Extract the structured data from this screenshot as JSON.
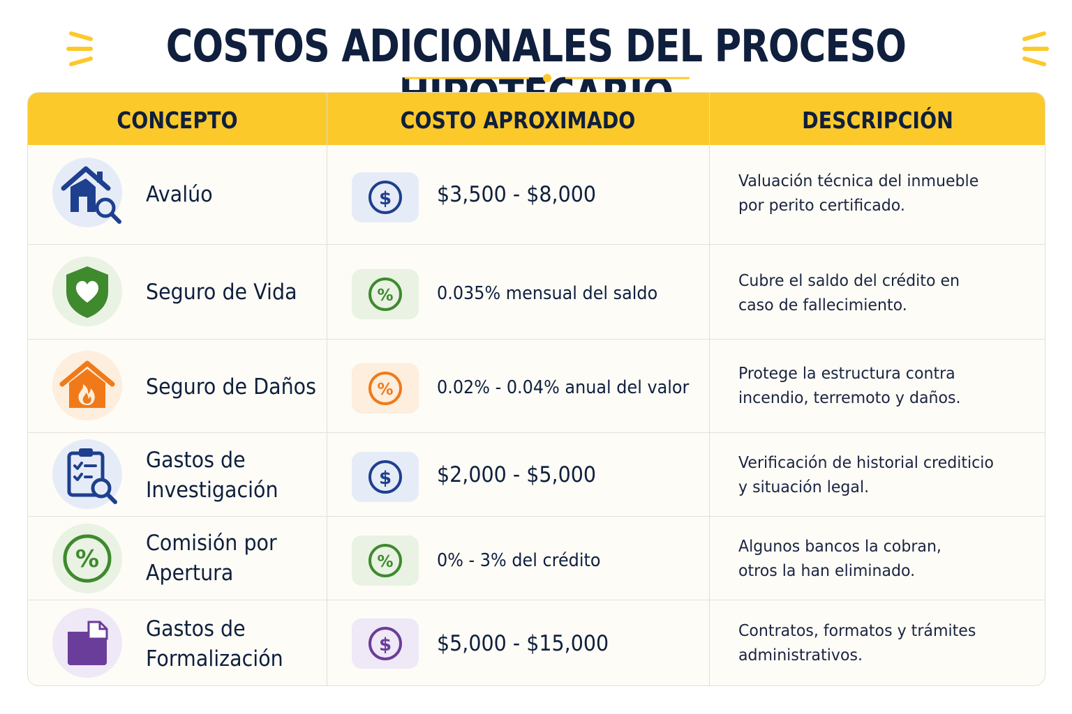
{
  "title": "COSTOS ADICIONALES DEL PROCESO HIPOTECARIO",
  "colors": {
    "accent_yellow": "#fcc92b",
    "navy": "#0f1f3d",
    "blue_icon": "#1f3f8f",
    "green_icon": "#3e8a2d",
    "orange_icon": "#f07a1a",
    "purple_icon": "#6a3d9a"
  },
  "table": {
    "headers": {
      "concept": "CONCEPTO",
      "cost": "COSTO APROXIMADO",
      "description": "DESCRIPCIÓN"
    },
    "rows": [
      {
        "icon": "house-search-icon",
        "concept_lines": [
          "Avalúo"
        ],
        "cost_icon": "dollar-icon",
        "cost": "$3,500 - $8,000",
        "description_lines": [
          "Valuación técnica del inmueble",
          "por perito certificado."
        ]
      },
      {
        "icon": "shield-heart-icon",
        "concept_lines": [
          "Seguro de Vida"
        ],
        "cost_icon": "percent-icon",
        "cost": "0.035% mensual del saldo",
        "description_lines": [
          "Cubre el saldo del crédito en",
          "caso de fallecimiento."
        ]
      },
      {
        "icon": "house-fire-icon",
        "concept_lines": [
          "Seguro de Daños"
        ],
        "cost_icon": "percent-icon",
        "cost": "0.02% - 0.04% anual del valor",
        "description_lines": [
          "Protege la estructura contra",
          "incendio, terremoto y daños."
        ]
      },
      {
        "icon": "clipboard-search-icon",
        "concept_lines": [
          "Gastos de",
          "Investigación"
        ],
        "cost_icon": "dollar-icon",
        "cost": "$2,000 - $5,000",
        "description_lines": [
          "Verificación de historial crediticio",
          "y situación legal."
        ]
      },
      {
        "icon": "percent-icon",
        "concept_lines": [
          "Comisión por",
          "Apertura"
        ],
        "cost_icon": "percent-icon",
        "cost": "0% - 3% del crédito",
        "description_lines": [
          "Algunos bancos la cobran,",
          "otros la han eliminado."
        ]
      },
      {
        "icon": "folder-icon",
        "concept_lines": [
          "Gastos de",
          "Formalización"
        ],
        "cost_icon": "dollar-icon",
        "cost": "$5,000 - $15,000",
        "description_lines": [
          "Contratos, formatos y trámites",
          "administrativos."
        ]
      }
    ]
  }
}
